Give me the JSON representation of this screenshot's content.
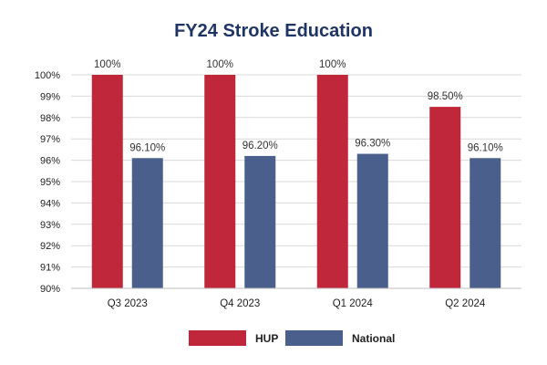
{
  "chart_data": {
    "type": "bar",
    "title": "FY24 Stroke Education",
    "categories": [
      "Q3 2023",
      "Q4 2023",
      "Q1 2024",
      "Q2 2024"
    ],
    "series": [
      {
        "name": "HUP",
        "values": [
          100,
          100,
          100,
          98.5
        ],
        "labels": [
          "100%",
          "100%",
          "100%",
          "98.50%"
        ],
        "color": "#c1273a"
      },
      {
        "name": "National",
        "values": [
          96.1,
          96.2,
          96.3,
          96.1
        ],
        "labels": [
          "96.10%",
          "96.20%",
          "96.30%",
          "96.10%"
        ],
        "color": "#4a5f8b"
      }
    ],
    "ylim": [
      90,
      100
    ],
    "yticks": [
      "90%",
      "91%",
      "92%",
      "93%",
      "94%",
      "95%",
      "96%",
      "97%",
      "98%",
      "99%",
      "100%"
    ],
    "grid": true,
    "legend_position": "bottom-center",
    "title_color": "#1f3566"
  }
}
